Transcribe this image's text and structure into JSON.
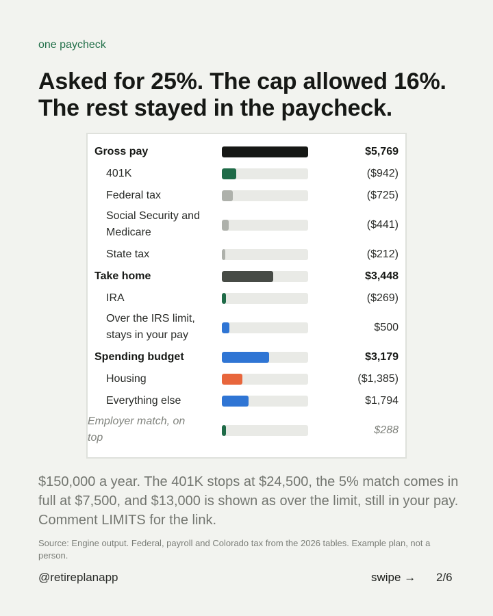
{
  "eyebrow": "one paycheck",
  "headline": {
    "line1": "Asked for 25%. The cap allowed 16%.",
    "line2": "The rest stayed in the paycheck."
  },
  "chart_data": {
    "type": "bar",
    "orientation": "horizontal",
    "scale_max": 5769,
    "rows": [
      {
        "label": "Gross pay",
        "value": 5769,
        "display": "$5,769",
        "level": "main",
        "color": "#161815"
      },
      {
        "label": "401K",
        "value": 942,
        "display": "($942)",
        "level": "sub",
        "color": "#1f6b48"
      },
      {
        "label": "Federal tax",
        "value": 725,
        "display": "($725)",
        "level": "sub",
        "color": "#aeb1ab"
      },
      {
        "label": "Social Security and Medicare",
        "value": 441,
        "display": "($441)",
        "level": "sub",
        "color": "#aeb1ab"
      },
      {
        "label": "State tax",
        "value": 212,
        "display": "($212)",
        "level": "sub",
        "color": "#aeb1ab"
      },
      {
        "label": "Take home",
        "value": 3448,
        "display": "$3,448",
        "level": "main",
        "color": "#474b46"
      },
      {
        "label": "IRA",
        "value": 269,
        "display": "($269)",
        "level": "sub",
        "color": "#1f6b48"
      },
      {
        "label": "Over the IRS limit, stays in your pay",
        "value": 500,
        "display": "$500",
        "level": "sub",
        "color": "#2f75d4"
      },
      {
        "label": "Spending budget",
        "value": 3179,
        "display": "$3,179",
        "level": "main",
        "color": "#2f75d4"
      },
      {
        "label": "Housing",
        "value": 1385,
        "display": "($1,385)",
        "level": "sub",
        "color": "#e8663c"
      },
      {
        "label": "Everything else",
        "value": 1794,
        "display": "$1,794",
        "level": "sub",
        "color": "#2f75d4"
      },
      {
        "label": "Employer match, on top",
        "value": 288,
        "display": "$288",
        "level": "italic",
        "color": "#1f6b48"
      }
    ]
  },
  "body": "$150,000 a year. The 401K stops at $24,500, the 5% match comes in full at $7,500, and $13,000 is shown as over the limit, still in your pay. Comment LIMITS for the link.",
  "source": "Source: Engine output. Federal, payroll and Colorado tax from the 2026 tables. Example plan, not a person.",
  "footer": {
    "handle": "@retireplanapp",
    "swipe": "swipe →",
    "page": "2/6"
  }
}
